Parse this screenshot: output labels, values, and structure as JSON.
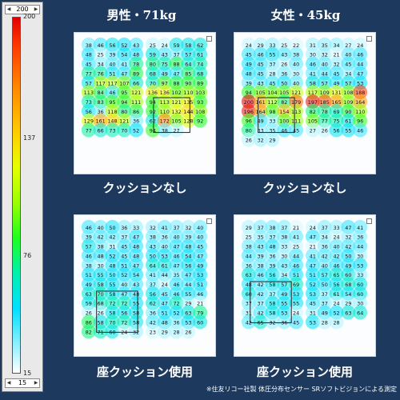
{
  "scale": {
    "top_value": "200",
    "bottom_value": "15",
    "ticks": [
      "200",
      "137",
      "76",
      "15"
    ],
    "tick_levels": [
      200,
      137,
      76,
      15
    ],
    "range": [
      15,
      200
    ]
  },
  "panels": [
    {
      "title": "男性・71kg",
      "caption": "クッションなし",
      "sample_values": [
        "38",
        "46",
        "56",
        "52",
        "43",
        "25",
        "24",
        "59",
        "58",
        "62",
        "48",
        "25",
        "39",
        "54",
        "48",
        "59",
        "43",
        "37",
        "57",
        "61",
        "45",
        "34",
        "40",
        "41",
        "78",
        "80",
        "75",
        "88",
        "64",
        "74",
        "77",
        "76",
        "51",
        "47",
        "89",
        "68",
        "49",
        "47",
        "85",
        "68",
        "57",
        "117",
        "117",
        "107",
        "66",
        "70",
        "97",
        "88",
        "90",
        "89",
        "113",
        "84",
        "46",
        "95",
        "121",
        "136",
        "136",
        "102",
        "110",
        "103",
        "73",
        "83",
        "95",
        "94",
        "111",
        "94",
        "113",
        "121",
        "135",
        "93",
        "56",
        "36",
        "118",
        "80",
        "86",
        "92",
        "110",
        "132",
        "144",
        "108",
        "129",
        "161",
        "148",
        "121",
        "36",
        "62",
        "172",
        "105",
        "128",
        "92",
        "77",
        "66",
        "73",
        "70",
        "52",
        "94",
        "38",
        "27"
      ],
      "box": true
    },
    {
      "title": "女性・45kg",
      "caption": "クッションなし",
      "sample_values": [
        "24",
        "29",
        "33",
        "25",
        "22",
        "31",
        "35",
        "34",
        "27",
        "24",
        "45",
        "46",
        "55",
        "43",
        "38",
        "30",
        "32",
        "21",
        "40",
        "46",
        "49",
        "45",
        "37",
        "26",
        "40",
        "46",
        "40",
        "32",
        "45",
        "44",
        "48",
        "45",
        "28",
        "36",
        "30",
        "41",
        "44",
        "45",
        "34",
        "47",
        "39",
        "43",
        "45",
        "50",
        "40",
        "58",
        "57",
        "49",
        "57",
        "53",
        "94",
        "105",
        "104",
        "105",
        "121",
        "117",
        "109",
        "131",
        "108",
        "188",
        "200",
        "161",
        "112",
        "82",
        "179",
        "197",
        "185",
        "165",
        "109",
        "164",
        "196",
        "164",
        "98",
        "154",
        "113",
        "82",
        "78",
        "69",
        "90",
        "110",
        "96",
        "49",
        "33",
        "100",
        "111",
        "105",
        "77",
        "75",
        "61",
        "96",
        "80",
        "33",
        "35",
        "46",
        "45",
        "27",
        "26",
        "56",
        "55",
        "46",
        "26",
        "32",
        "29"
      ],
      "box": true
    },
    {
      "title": "",
      "caption": "座クッション使用",
      "sample_values": [
        "46",
        "40",
        "50",
        "36",
        "33",
        "32",
        "41",
        "37",
        "32",
        "40",
        "39",
        "42",
        "42",
        "37",
        "47",
        "38",
        "36",
        "40",
        "39",
        "40",
        "57",
        "38",
        "31",
        "45",
        "48",
        "43",
        "40",
        "47",
        "48",
        "45",
        "46",
        "48",
        "52",
        "45",
        "48",
        "50",
        "53",
        "46",
        "54",
        "47",
        "38",
        "30",
        "48",
        "51",
        "47",
        "64",
        "61",
        "47",
        "56",
        "49",
        "51",
        "55",
        "50",
        "52",
        "54",
        "41",
        "44",
        "35",
        "47",
        "53",
        "49",
        "58",
        "55",
        "40",
        "43",
        "37",
        "24",
        "46",
        "44",
        "51",
        "63",
        "70",
        "58",
        "47",
        "48",
        "56",
        "45",
        "46",
        "55",
        "46",
        "59",
        "68",
        "72",
        "72",
        "55",
        "62",
        "47",
        "72",
        "29",
        "21",
        "26",
        "26",
        "58",
        "56",
        "58",
        "36",
        "51",
        "52",
        "63",
        "79",
        "86",
        "58",
        "70",
        "72",
        "58",
        "42",
        "48",
        "36",
        "53",
        "60",
        "82",
        "71",
        "60",
        "24",
        "32",
        "23",
        "29",
        "28",
        "26"
      ],
      "box": true
    },
    {
      "title": "",
      "caption": "座クッション使用",
      "sample_values": [
        "29",
        "37",
        "38",
        "37",
        "21",
        "24",
        "37",
        "33",
        "47",
        "41",
        "25",
        "35",
        "37",
        "38",
        "41",
        "47",
        "34",
        "24",
        "32",
        "36",
        "38",
        "43",
        "48",
        "33",
        "25",
        "21",
        "36",
        "40",
        "42",
        "44",
        "44",
        "39",
        "36",
        "30",
        "44",
        "41",
        "42",
        "42",
        "50",
        "30",
        "36",
        "38",
        "39",
        "43",
        "46",
        "47",
        "40",
        "46",
        "49",
        "53",
        "63",
        "46",
        "56",
        "34",
        "51",
        "51",
        "57",
        "65",
        "60",
        "33",
        "48",
        "42",
        "58",
        "57",
        "69",
        "52",
        "50",
        "56",
        "68",
        "60",
        "60",
        "42",
        "37",
        "49",
        "53",
        "53",
        "37",
        "61",
        "54",
        "60",
        "37",
        "37",
        "58",
        "55",
        "55",
        "45",
        "37",
        "24",
        "29",
        "30",
        "31",
        "42",
        "58",
        "53",
        "24",
        "31",
        "49",
        "52",
        "63",
        "64",
        "42",
        "65",
        "32",
        "36",
        "45",
        "53",
        "28",
        "28"
      ],
      "box": true
    }
  ],
  "footnote": "※住友リコー社製 体圧分布センサー SRソフトビジョンによる測定"
}
